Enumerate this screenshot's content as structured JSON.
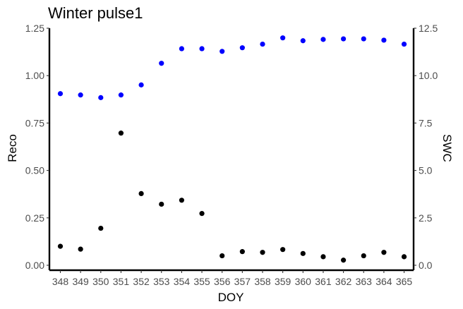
{
  "chart_data": {
    "type": "scatter",
    "title": "Winter pulse1",
    "xlabel": "DOY",
    "ylabel": "Reco",
    "y2label": "SWC",
    "categories": [
      "348",
      "349",
      "350",
      "351",
      "352",
      "353",
      "354",
      "355",
      "356",
      "357",
      "358",
      "359",
      "360",
      "361",
      "362",
      "363",
      "364",
      "365"
    ],
    "ylim": [
      0,
      1.25
    ],
    "y2lim": [
      0,
      12.5
    ],
    "yticks": [
      "0.00",
      "0.25",
      "0.50",
      "0.75",
      "1.00",
      "1.25"
    ],
    "y2ticks": [
      "0.0",
      "2.5",
      "5.0",
      "7.5",
      "10.0",
      "12.5"
    ],
    "grid": false,
    "series": [
      {
        "axis": "left",
        "color": "#000000",
        "values": [
          0.1,
          0.085,
          0.195,
          0.697,
          0.378,
          0.322,
          0.343,
          0.273,
          0.05,
          0.072,
          0.068,
          0.083,
          0.062,
          0.045,
          0.027,
          0.05,
          0.068,
          0.045
        ]
      },
      {
        "axis": "right",
        "color": "#0000ff",
        "values": [
          9.05,
          8.98,
          8.84,
          8.98,
          9.51,
          10.65,
          11.42,
          11.42,
          11.28,
          11.47,
          11.66,
          11.99,
          11.84,
          11.91,
          11.94,
          11.94,
          11.87,
          11.66
        ]
      }
    ]
  }
}
